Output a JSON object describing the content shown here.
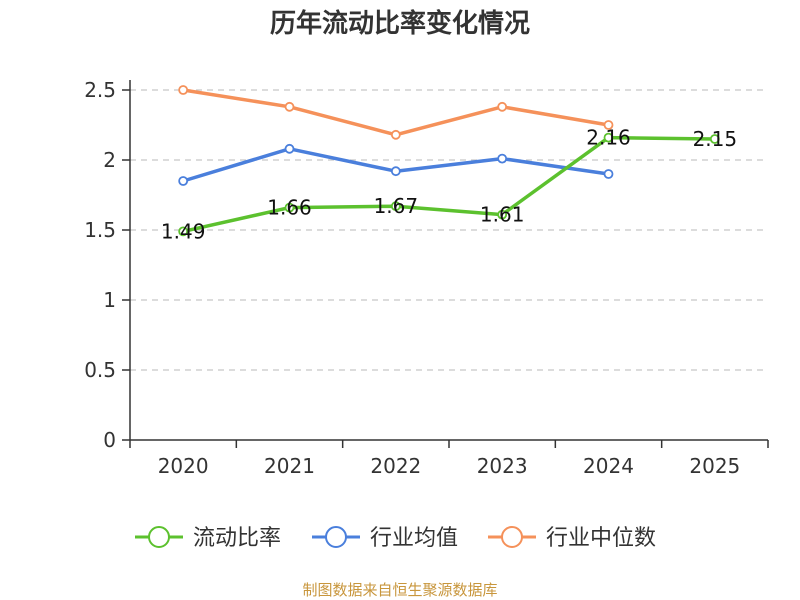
{
  "colors": {
    "ratio": "#5cc12e",
    "industry_avg": "#4a7fdc",
    "industry_median": "#f5915a",
    "grid": "#c8c8c8",
    "axis": "#333333",
    "source": "#c8963c"
  },
  "source_text": "制图数据来自恒生聚源数据库",
  "chart_data": {
    "type": "line",
    "title": "历年流动比率变化情况",
    "categories": [
      "2020",
      "2021",
      "2022",
      "2023",
      "2024",
      "2025"
    ],
    "y_ticks": [
      "0",
      "0.5",
      "1",
      "1.5",
      "2",
      "2.5"
    ],
    "ylim": [
      0,
      2.5
    ],
    "grid": true,
    "legend_position": "bottom",
    "series": [
      {
        "key": "ratio",
        "name": "流动比率",
        "values": [
          1.49,
          1.66,
          1.67,
          1.61,
          2.16,
          2.15
        ],
        "labels": [
          "1.49",
          "1.66",
          "1.67",
          "1.61",
          "2.16",
          "2.15"
        ]
      },
      {
        "key": "industry_avg",
        "name": "行业均值",
        "values": [
          1.85,
          2.08,
          1.92,
          2.01,
          1.9,
          null
        ]
      },
      {
        "key": "industry_median",
        "name": "行业中位数",
        "values": [
          2.5,
          2.38,
          2.18,
          2.38,
          2.25,
          null
        ]
      }
    ]
  }
}
